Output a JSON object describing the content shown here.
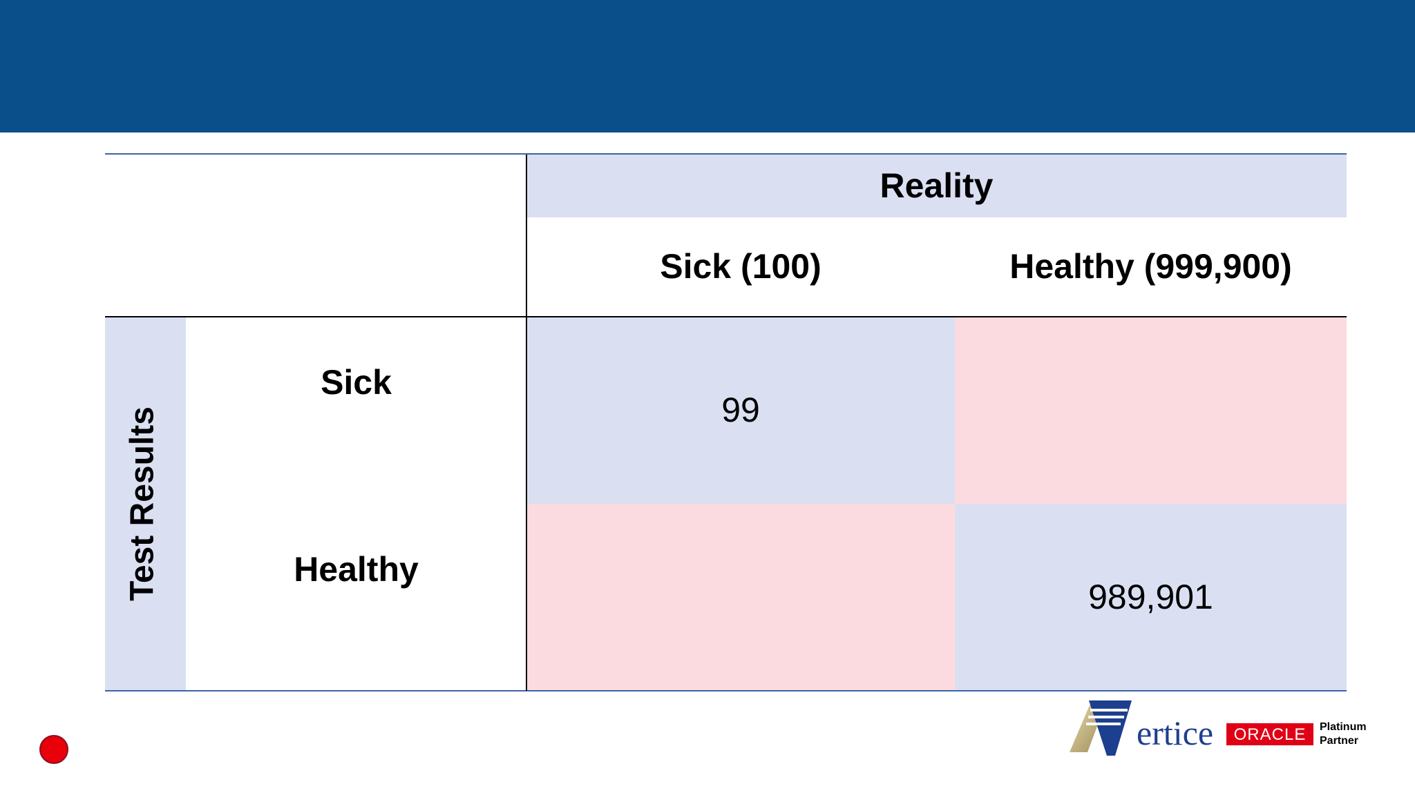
{
  "table": {
    "reality_header": "Reality",
    "col_sick": "Sick (100)",
    "col_healthy": "Healthy (999,900)",
    "row_group_label": "Test Results",
    "row_sick": "Sick",
    "row_healthy": "Healthy",
    "cell_sick_sick": "99",
    "cell_sick_healthy": "",
    "cell_healthy_sick": "",
    "cell_healthy_healthy": "989,901"
  },
  "logo": {
    "brand": "ertice",
    "partner_badge": "ORACLE",
    "partner_level_line1": "Platinum",
    "partner_level_line2": "Partner"
  },
  "colors": {
    "banner": "#0b4f8a",
    "header_fill": "#dae0f2",
    "true_cell": "#dae0f2",
    "false_cell": "#fcdbe0",
    "oracle_red": "#e00015"
  }
}
